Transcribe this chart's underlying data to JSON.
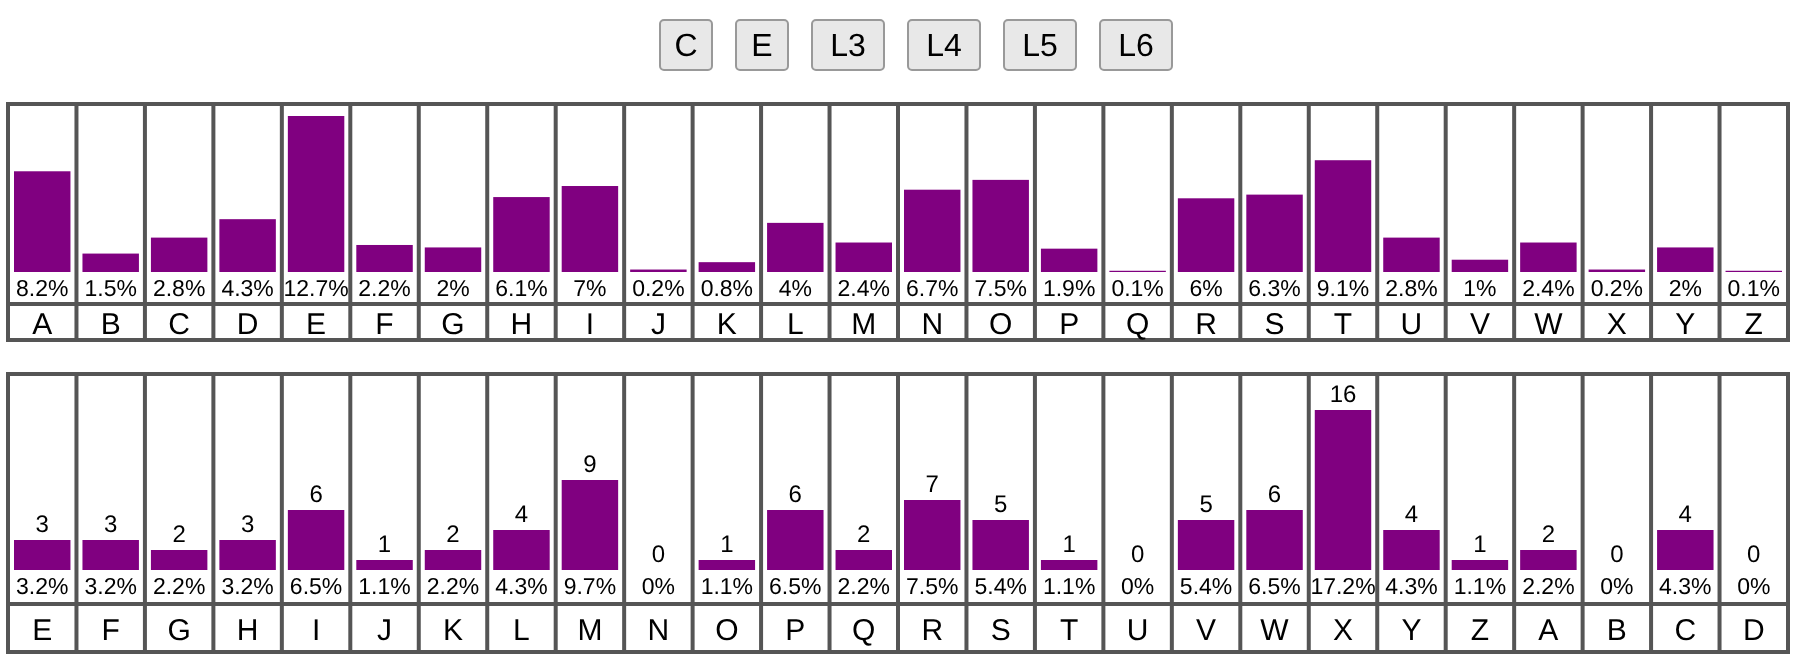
{
  "chart_data": [
    {
      "type": "bar",
      "categories": [
        "A",
        "B",
        "C",
        "D",
        "E",
        "F",
        "G",
        "H",
        "I",
        "J",
        "K",
        "L",
        "M",
        "N",
        "O",
        "P",
        "Q",
        "R",
        "S",
        "T",
        "U",
        "V",
        "W",
        "X",
        "Y",
        "Z"
      ],
      "values": [
        8.2,
        1.5,
        2.8,
        4.3,
        12.7,
        2.2,
        2,
        6.1,
        7,
        0.2,
        0.8,
        4,
        2.4,
        6.7,
        7.5,
        1.9,
        0.1,
        6,
        6.3,
        9.1,
        2.8,
        1,
        2.4,
        0.2,
        2,
        0.1
      ],
      "value_labels": [
        "8.2%",
        "1.5%",
        "2.8%",
        "4.3%",
        "12.7%",
        "2.2%",
        "2%",
        "6.1%",
        "7%",
        "0.2%",
        "0.8%",
        "4%",
        "2.4%",
        "6.7%",
        "7.5%",
        "1.9%",
        "0.1%",
        "6%",
        "6.3%",
        "9.1%",
        "2.8%",
        "1%",
        "2.4%",
        "0.2%",
        "2%",
        "0.1%"
      ],
      "color": "#800080",
      "grid": "x",
      "annotations": [
        "C",
        "E",
        "L3",
        "L4",
        "L5",
        "L6"
      ]
    },
    {
      "type": "bar",
      "categories": [
        "E",
        "F",
        "G",
        "H",
        "I",
        "J",
        "K",
        "L",
        "M",
        "N",
        "O",
        "P",
        "Q",
        "R",
        "S",
        "T",
        "U",
        "V",
        "W",
        "X",
        "Y",
        "Z",
        "A",
        "B",
        "C",
        "D"
      ],
      "values": [
        3,
        3,
        2,
        3,
        6,
        1,
        2,
        4,
        9,
        0,
        1,
        6,
        2,
        7,
        5,
        1,
        0,
        5,
        6,
        16,
        4,
        1,
        2,
        0,
        4,
        0
      ],
      "data_labels": true,
      "color": "#800080",
      "grid": "x",
      "annotations": [
        "3.2%",
        "3.2%",
        "2.2%",
        "3.2%",
        "6.5%",
        "1.1%",
        "2.2%",
        "4.3%",
        "9.7%",
        "0%",
        "1.1%",
        "6.5%",
        "2.2%",
        "7.5%",
        "5.4%",
        "1.1%",
        "0%",
        "5.4%",
        "6.5%",
        "17.2%",
        "4.3%",
        "1.1%",
        "2.2%",
        "0%",
        "4.3%",
        "0%"
      ]
    }
  ]
}
